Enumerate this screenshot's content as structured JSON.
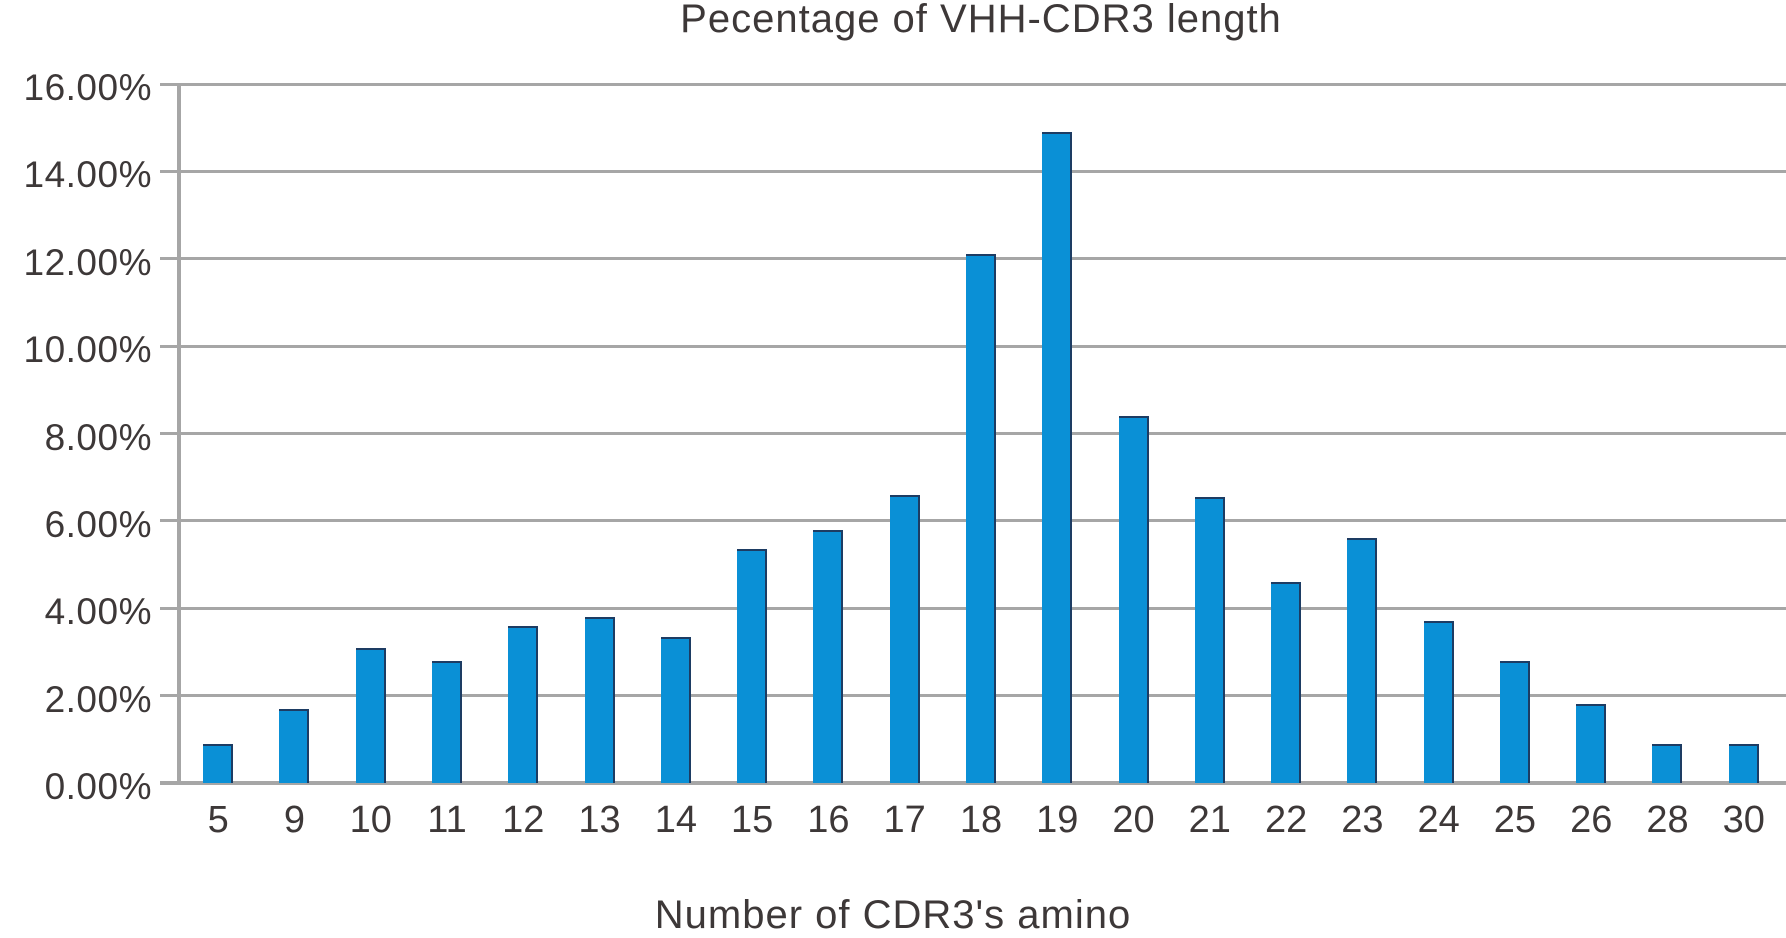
{
  "chart": {
    "title": "Pecentage of VHH-CDR3 length",
    "x_axis_title": "Number of CDR3's amino"
  },
  "chart_data": {
    "type": "bar",
    "title": "Pecentage of VHH-CDR3 length",
    "xlabel": "Number of CDR3's amino",
    "ylabel": "",
    "categories": [
      "5",
      "9",
      "10",
      "11",
      "12",
      "13",
      "14",
      "15",
      "16",
      "17",
      "18",
      "19",
      "20",
      "21",
      "22",
      "23",
      "24",
      "25",
      "26",
      "28",
      "30"
    ],
    "values": [
      0.9,
      1.7,
      3.1,
      2.8,
      3.6,
      3.8,
      3.35,
      5.35,
      5.8,
      6.6,
      12.1,
      14.9,
      8.4,
      6.55,
      4.6,
      5.6,
      3.7,
      2.8,
      1.8,
      0.9,
      0.9
    ],
    "value_unit": "%",
    "ylim": [
      0,
      16
    ],
    "y_tick_step": 2,
    "y_tick_labels": [
      "0.00%",
      "2.00%",
      "4.00%",
      "6.00%",
      "8.00%",
      "10.00%",
      "12.00%",
      "14.00%",
      "16.00%"
    ],
    "grid": "horizontal",
    "legend": "none",
    "colors": {
      "bar": "#0a90d6",
      "bar_edge": "#1d3c63",
      "gridline": "#a6a6a6",
      "text": "#3d3838"
    }
  }
}
